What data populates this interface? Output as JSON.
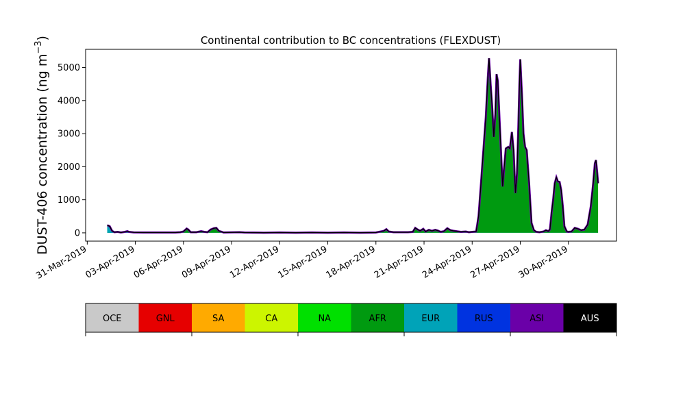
{
  "chart_data": {
    "type": "area",
    "title": "Continental contribution to BC concentrations (FLEXDUST)",
    "ylabel_main": "DUST-406 concentration (ng m",
    "ylabel_exp": "−3",
    "ylabel_close": ")",
    "xlabel": "",
    "ylim": [
      -250,
      5550
    ],
    "xlim_days": [
      -0.1,
      33
    ],
    "x_origin_date": "31-Mar-2019",
    "yticks": [
      {
        "value": 0,
        "label": "0"
      },
      {
        "value": 1000,
        "label": "1000"
      },
      {
        "value": 2000,
        "label": "2000"
      },
      {
        "value": 3000,
        "label": "3000"
      },
      {
        "value": 4000,
        "label": "4000"
      },
      {
        "value": 5000,
        "label": "5000"
      }
    ],
    "xticks": [
      {
        "day": 0,
        "label": "31-Mar-2019"
      },
      {
        "day": 3,
        "label": "03-Apr-2019"
      },
      {
        "day": 6,
        "label": "06-Apr-2019"
      },
      {
        "day": 9,
        "label": "09-Apr-2019"
      },
      {
        "day": 12,
        "label": "12-Apr-2019"
      },
      {
        "day": 15,
        "label": "15-Apr-2019"
      },
      {
        "day": 18,
        "label": "18-Apr-2019"
      },
      {
        "day": 21,
        "label": "21-Apr-2019"
      },
      {
        "day": 24,
        "label": "24-Apr-2019"
      },
      {
        "day": 27,
        "label": "27-Apr-2019"
      },
      {
        "day": 30,
        "label": "30-Apr-2019"
      }
    ],
    "total_points": [
      [
        1.25,
        230
      ],
      [
        1.4,
        200
      ],
      [
        1.55,
        60
      ],
      [
        1.7,
        20
      ],
      [
        1.9,
        30
      ],
      [
        2.1,
        10
      ],
      [
        2.35,
        30
      ],
      [
        2.5,
        50
      ],
      [
        2.6,
        30
      ],
      [
        2.9,
        15
      ],
      [
        3.5,
        10
      ],
      [
        4.5,
        10
      ],
      [
        5.5,
        10
      ],
      [
        5.8,
        20
      ],
      [
        6.0,
        40
      ],
      [
        6.2,
        130
      ],
      [
        6.3,
        100
      ],
      [
        6.45,
        20
      ],
      [
        6.8,
        20
      ],
      [
        7.1,
        50
      ],
      [
        7.3,
        30
      ],
      [
        7.5,
        20
      ],
      [
        7.7,
        100
      ],
      [
        7.9,
        140
      ],
      [
        8.05,
        150
      ],
      [
        8.2,
        60
      ],
      [
        8.4,
        30
      ],
      [
        8.5,
        10
      ],
      [
        9.5,
        20
      ],
      [
        9.8,
        10
      ],
      [
        11,
        5
      ],
      [
        12,
        10
      ],
      [
        13,
        5
      ],
      [
        14,
        10
      ],
      [
        15,
        5
      ],
      [
        16,
        10
      ],
      [
        17,
        5
      ],
      [
        18,
        10
      ],
      [
        18.3,
        40
      ],
      [
        18.5,
        60
      ],
      [
        18.65,
        110
      ],
      [
        18.8,
        40
      ],
      [
        19.1,
        20
      ],
      [
        19.6,
        20
      ],
      [
        20,
        20
      ],
      [
        20.3,
        30
      ],
      [
        20.45,
        150
      ],
      [
        20.6,
        100
      ],
      [
        20.75,
        60
      ],
      [
        20.95,
        120
      ],
      [
        21.1,
        40
      ],
      [
        21.3,
        90
      ],
      [
        21.5,
        60
      ],
      [
        21.7,
        90
      ],
      [
        21.85,
        70
      ],
      [
        22.05,
        30
      ],
      [
        22.25,
        50
      ],
      [
        22.45,
        140
      ],
      [
        22.65,
        80
      ],
      [
        22.85,
        60
      ],
      [
        23,
        50
      ],
      [
        23.3,
        30
      ],
      [
        23.6,
        40
      ],
      [
        23.8,
        20
      ],
      [
        24,
        30
      ],
      [
        24.25,
        40
      ],
      [
        24.4,
        500
      ],
      [
        24.55,
        1500
      ],
      [
        24.7,
        2500
      ],
      [
        24.85,
        3500
      ],
      [
        24.98,
        4700
      ],
      [
        25.05,
        5280
      ],
      [
        25.15,
        4500
      ],
      [
        25.25,
        3800
      ],
      [
        25.35,
        2900
      ],
      [
        25.45,
        3600
      ],
      [
        25.52,
        4800
      ],
      [
        25.6,
        4600
      ],
      [
        25.7,
        3500
      ],
      [
        25.82,
        2200
      ],
      [
        25.9,
        1400
      ],
      [
        26.0,
        2000
      ],
      [
        26.1,
        2550
      ],
      [
        26.25,
        2600
      ],
      [
        26.35,
        2550
      ],
      [
        26.48,
        3050
      ],
      [
        26.58,
        2500
      ],
      [
        26.7,
        1200
      ],
      [
        26.8,
        1800
      ],
      [
        26.88,
        3200
      ],
      [
        26.95,
        4500
      ],
      [
        27.0,
        5250
      ],
      [
        27.1,
        4200
      ],
      [
        27.2,
        3000
      ],
      [
        27.3,
        2600
      ],
      [
        27.4,
        2500
      ],
      [
        27.55,
        1500
      ],
      [
        27.7,
        300
      ],
      [
        27.85,
        80
      ],
      [
        28.0,
        30
      ],
      [
        28.2,
        20
      ],
      [
        28.45,
        40
      ],
      [
        28.6,
        80
      ],
      [
        28.75,
        50
      ],
      [
        28.85,
        100
      ],
      [
        28.95,
        600
      ],
      [
        29.05,
        1000
      ],
      [
        29.15,
        1500
      ],
      [
        29.25,
        1680
      ],
      [
        29.35,
        1550
      ],
      [
        29.45,
        1540
      ],
      [
        29.55,
        1300
      ],
      [
        29.65,
        800
      ],
      [
        29.75,
        200
      ],
      [
        29.9,
        40
      ],
      [
        30.0,
        30
      ],
      [
        30.2,
        40
      ],
      [
        30.4,
        150
      ],
      [
        30.6,
        120
      ],
      [
        30.8,
        80
      ],
      [
        31.0,
        100
      ],
      [
        31.2,
        250
      ],
      [
        31.4,
        800
      ],
      [
        31.55,
        1500
      ],
      [
        31.65,
        2100
      ],
      [
        31.72,
        2200
      ],
      [
        31.8,
        1800
      ],
      [
        31.85,
        1500
      ]
    ],
    "eur_points": [
      [
        1.25,
        230
      ],
      [
        1.4,
        200
      ],
      [
        1.55,
        50
      ],
      [
        1.7,
        15
      ],
      [
        2.0,
        10
      ],
      [
        2.5,
        20
      ],
      [
        3.0,
        10
      ],
      [
        4,
        5
      ],
      [
        6,
        5
      ],
      [
        8,
        5
      ],
      [
        10,
        5
      ],
      [
        12,
        5
      ],
      [
        14,
        5
      ],
      [
        16,
        5
      ],
      [
        18,
        5
      ],
      [
        20,
        5
      ],
      [
        22,
        5
      ],
      [
        24,
        5
      ],
      [
        26,
        3
      ],
      [
        28,
        3
      ],
      [
        30,
        3
      ],
      [
        31.85,
        3
      ]
    ],
    "legend_title": "",
    "legend": [
      {
        "label": "OCE",
        "color": "#c9c9c9",
        "text_color": "#000000"
      },
      {
        "label": "GNL",
        "color": "#e60000",
        "text_color": "#000000"
      },
      {
        "label": "SA",
        "color": "#ffaa00",
        "text_color": "#000000"
      },
      {
        "label": "CA",
        "color": "#ccf500",
        "text_color": "#000000"
      },
      {
        "label": "NA",
        "color": "#00e000",
        "text_color": "#000000"
      },
      {
        "label": "AFR",
        "color": "#009a10",
        "text_color": "#000000"
      },
      {
        "label": "EUR",
        "color": "#00a3b8",
        "text_color": "#000000"
      },
      {
        "label": "RUS",
        "color": "#0033e0",
        "text_color": "#000000"
      },
      {
        "label": "ASI",
        "color": "#6a00a8",
        "text_color": "#000000"
      },
      {
        "label": "AUS",
        "color": "#000000",
        "text_color": "#ffffff"
      }
    ],
    "colors": {
      "afr_fill": "#009a10",
      "eur_fill": "#00a3b8",
      "asi_edge": "#6a00a8",
      "outline": "#000000"
    }
  }
}
